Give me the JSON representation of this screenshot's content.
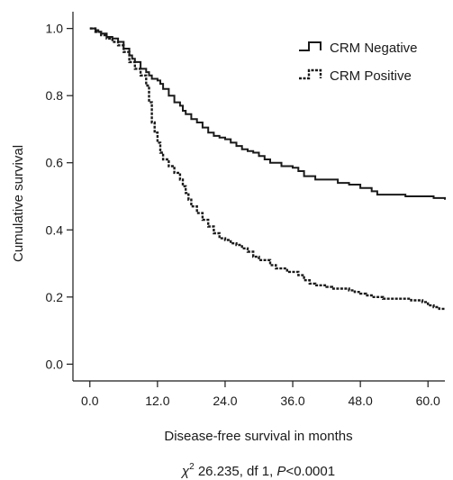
{
  "chart_data": {
    "type": "line",
    "subtype": "kaplan-meier step",
    "xlabel": "Disease-free survival in months",
    "ylabel": "Cumulative survival",
    "xlim": [
      -3,
      63
    ],
    "ylim": [
      -0.05,
      1.05
    ],
    "x_ticks": [
      "0.0",
      "12.0",
      "24.0",
      "36.0",
      "48.0",
      "60.0"
    ],
    "y_ticks": [
      "0.0",
      "0.2",
      "0.4",
      "0.6",
      "0.8",
      "1.0"
    ],
    "grid": false,
    "legend_position": "top-right",
    "footnote": {
      "prefix": "χ",
      "superscript": "2",
      "stat": " 26.235, df 1, ",
      "p_symbol": "P",
      "p_value": "<0.0001"
    },
    "series": [
      {
        "name": "CRM Negative",
        "style": "solid",
        "color": "#1a1a1a",
        "x": [
          0,
          1,
          1.5,
          2,
          3,
          4,
          5,
          6,
          7,
          7.5,
          8,
          9,
          10,
          10.5,
          11,
          12,
          12.5,
          13,
          14,
          15,
          16,
          16.5,
          17,
          18,
          19,
          20,
          21,
          22,
          23,
          24,
          25,
          26,
          27,
          28,
          29,
          30,
          31,
          32,
          34,
          36,
          37,
          38,
          40,
          44,
          46,
          47,
          48,
          50,
          51,
          56,
          57,
          58,
          60,
          61,
          63
        ],
        "y": [
          1.0,
          0.995,
          0.99,
          0.985,
          0.975,
          0.97,
          0.96,
          0.94,
          0.92,
          0.91,
          0.9,
          0.88,
          0.87,
          0.86,
          0.85,
          0.845,
          0.835,
          0.82,
          0.8,
          0.78,
          0.77,
          0.755,
          0.745,
          0.73,
          0.72,
          0.705,
          0.69,
          0.68,
          0.675,
          0.67,
          0.66,
          0.65,
          0.64,
          0.635,
          0.63,
          0.62,
          0.61,
          0.6,
          0.59,
          0.585,
          0.575,
          0.56,
          0.55,
          0.54,
          0.535,
          0.535,
          0.525,
          0.515,
          0.505,
          0.5,
          0.5,
          0.5,
          0.5,
          0.495,
          0.49
        ]
      },
      {
        "name": "CRM Positive",
        "style": "dashed",
        "color": "#1a1a1a",
        "x": [
          0,
          1,
          2,
          3,
          4,
          5,
          6,
          7,
          8,
          9,
          10,
          10.5,
          11,
          11.5,
          12,
          12.5,
          13,
          14,
          15,
          16,
          16.5,
          17,
          17.5,
          18,
          19,
          20,
          21,
          22,
          23,
          24,
          25,
          26,
          27,
          28,
          29,
          30,
          32,
          33,
          35,
          37,
          38,
          39,
          40,
          42,
          43,
          46,
          47,
          48,
          49,
          50,
          52,
          57,
          59,
          60,
          61,
          62,
          63
        ],
        "y": [
          1.0,
          0.99,
          0.98,
          0.97,
          0.96,
          0.95,
          0.93,
          0.9,
          0.88,
          0.86,
          0.83,
          0.78,
          0.72,
          0.69,
          0.66,
          0.63,
          0.61,
          0.59,
          0.57,
          0.55,
          0.53,
          0.51,
          0.49,
          0.47,
          0.45,
          0.43,
          0.41,
          0.39,
          0.375,
          0.37,
          0.36,
          0.355,
          0.345,
          0.335,
          0.32,
          0.31,
          0.295,
          0.285,
          0.275,
          0.265,
          0.25,
          0.24,
          0.235,
          0.23,
          0.225,
          0.22,
          0.215,
          0.21,
          0.205,
          0.2,
          0.195,
          0.19,
          0.185,
          0.175,
          0.17,
          0.165,
          0.165
        ]
      }
    ]
  }
}
